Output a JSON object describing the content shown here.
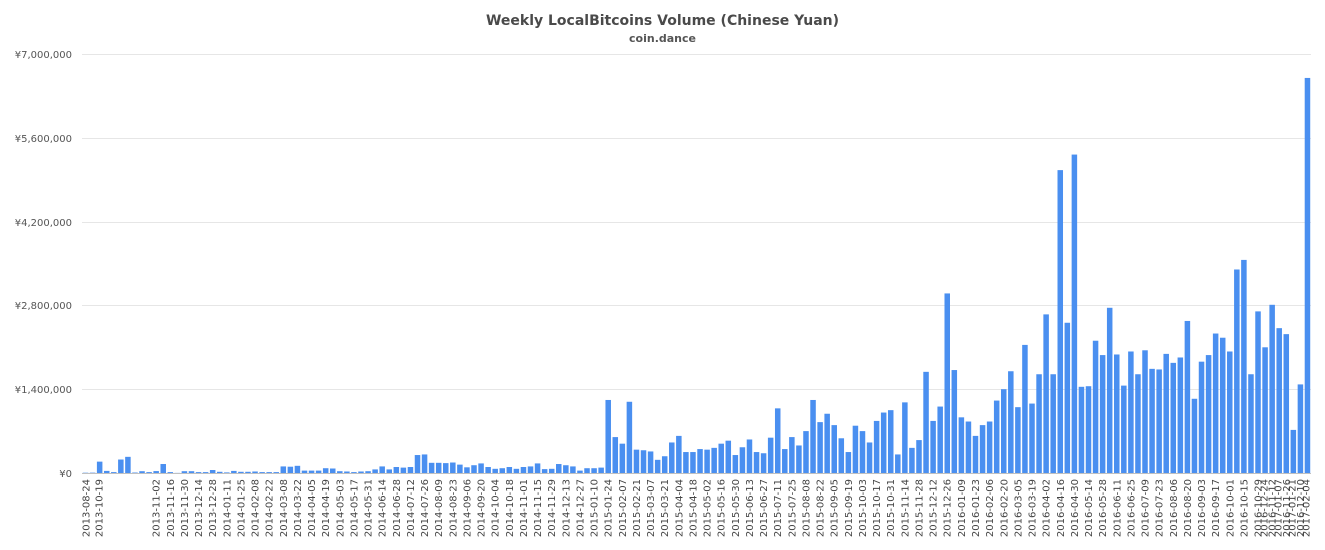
{
  "header": {
    "title": "Weekly LocalBitcoins Volume (Chinese Yuan)",
    "subtitle": "coin.dance"
  },
  "colors": {
    "bar": "#4a8ff0",
    "grid": "#e6e6e6",
    "axis": "#c0c0c0"
  },
  "chart_data": {
    "type": "bar",
    "title": "Weekly LocalBitcoins Volume (Chinese Yuan)",
    "subtitle": "coin.dance",
    "xlabel": "",
    "ylabel": "",
    "ylim": [
      0,
      7000000
    ],
    "y_ticks": [
      0,
      1400000,
      2800000,
      4200000,
      5600000,
      7000000
    ],
    "y_tick_labels": [
      "¥0",
      "¥1,400,000",
      "¥2,800,000",
      "¥4,200,000",
      "¥5,600,000",
      "¥7,000,000"
    ],
    "grid": true,
    "legend": "none",
    "start_date": "2013-08-24",
    "step_days": 7,
    "x_tick_labels": [
      "2013-08-24",
      "2013-10-19",
      "2013-11-02",
      "2013-11-16",
      "2013-11-30",
      "2013-12-14",
      "2013-12-28",
      "2014-01-11",
      "2014-01-25",
      "2014-02-08",
      "2014-02-22",
      "2014-03-08",
      "2014-03-22",
      "2014-04-05",
      "2014-04-19",
      "2014-05-03",
      "2014-05-17",
      "2014-05-31",
      "2014-06-14",
      "2014-06-28",
      "2014-07-12",
      "2014-07-26",
      "2014-08-09",
      "2014-08-23",
      "2014-09-06",
      "2014-09-20",
      "2014-10-04",
      "2014-10-18",
      "2014-11-01",
      "2014-11-15",
      "2014-11-29",
      "2014-12-13",
      "2014-12-27",
      "2015-01-10",
      "2015-01-24",
      "2015-02-07",
      "2015-02-21",
      "2015-03-07",
      "2015-03-21",
      "2015-04-04",
      "2015-04-18",
      "2015-05-02",
      "2015-05-16",
      "2015-05-30",
      "2015-06-13",
      "2015-06-27",
      "2015-07-11",
      "2015-07-25",
      "2015-08-08",
      "2015-08-22",
      "2015-09-05",
      "2015-09-19",
      "2015-10-03",
      "2015-10-17",
      "2015-10-31",
      "2015-11-14",
      "2015-11-28",
      "2015-12-12",
      "2015-12-26",
      "2016-01-09",
      "2016-01-23",
      "2016-02-06",
      "2016-02-20",
      "2016-03-05",
      "2016-03-19",
      "2016-04-02",
      "2016-04-16",
      "2016-04-30",
      "2016-05-14",
      "2016-05-28",
      "2016-06-11",
      "2016-06-25",
      "2016-07-09",
      "2016-07-23",
      "2016-08-06",
      "2016-08-20",
      "2016-09-03",
      "2016-09-17",
      "2016-10-01",
      "2016-10-15",
      "2016-10-29",
      "2016-11-12",
      "2016-11-26",
      "2016-12-10",
      "2016-12-24",
      "2017-01-07",
      "2017-01-21",
      "2017-02-04"
    ],
    "values": [
      5000,
      6000,
      190000,
      35000,
      15000,
      225000,
      270000,
      8000,
      30000,
      15000,
      32000,
      150000,
      15000,
      2000,
      30000,
      30000,
      15000,
      15000,
      50000,
      20000,
      10000,
      35000,
      20000,
      20000,
      25000,
      15000,
      15000,
      15000,
      110000,
      105000,
      120000,
      40000,
      40000,
      40000,
      80000,
      75000,
      30000,
      25000,
      15000,
      25000,
      30000,
      60000,
      110000,
      60000,
      100000,
      90000,
      100000,
      300000,
      310000,
      170000,
      170000,
      165000,
      175000,
      140000,
      95000,
      130000,
      160000,
      100000,
      70000,
      80000,
      100000,
      70000,
      100000,
      110000,
      160000,
      65000,
      70000,
      150000,
      130000,
      110000,
      40000,
      80000,
      80000,
      90000,
      1220000,
      600000,
      490000,
      1190000,
      390000,
      380000,
      360000,
      220000,
      280000,
      510000,
      620000,
      350000,
      350000,
      400000,
      390000,
      420000,
      490000,
      540000,
      300000,
      430000,
      560000,
      350000,
      330000,
      590000,
      1080000,
      400000,
      600000,
      460000,
      700000,
      1220000,
      850000,
      990000,
      800000,
      580000,
      350000,
      790000,
      700000,
      510000,
      870000,
      1010000,
      1050000,
      310000,
      1180000,
      420000,
      550000,
      1690000,
      870000,
      1110000,
      3000000,
      1720000,
      930000,
      860000,
      620000,
      800000,
      860000,
      1210000,
      1400000,
      1700000,
      1100000,
      2140000,
      1160000,
      1650000,
      2650000,
      1650000,
      5060000,
      2510000,
      5320000,
      1440000,
      1450000,
      2210000,
      1970000,
      2760000,
      1980000,
      1460000,
      2030000,
      1650000,
      2050000,
      1740000,
      1730000,
      1990000,
      1840000,
      1930000,
      2540000,
      1240000,
      1860000,
      1970000,
      2330000,
      2260000,
      2030000,
      3400000,
      3560000,
      1650000,
      2700000,
      2100000,
      2810000,
      2420000,
      2320000,
      720000,
      1480000,
      6600000
    ]
  }
}
